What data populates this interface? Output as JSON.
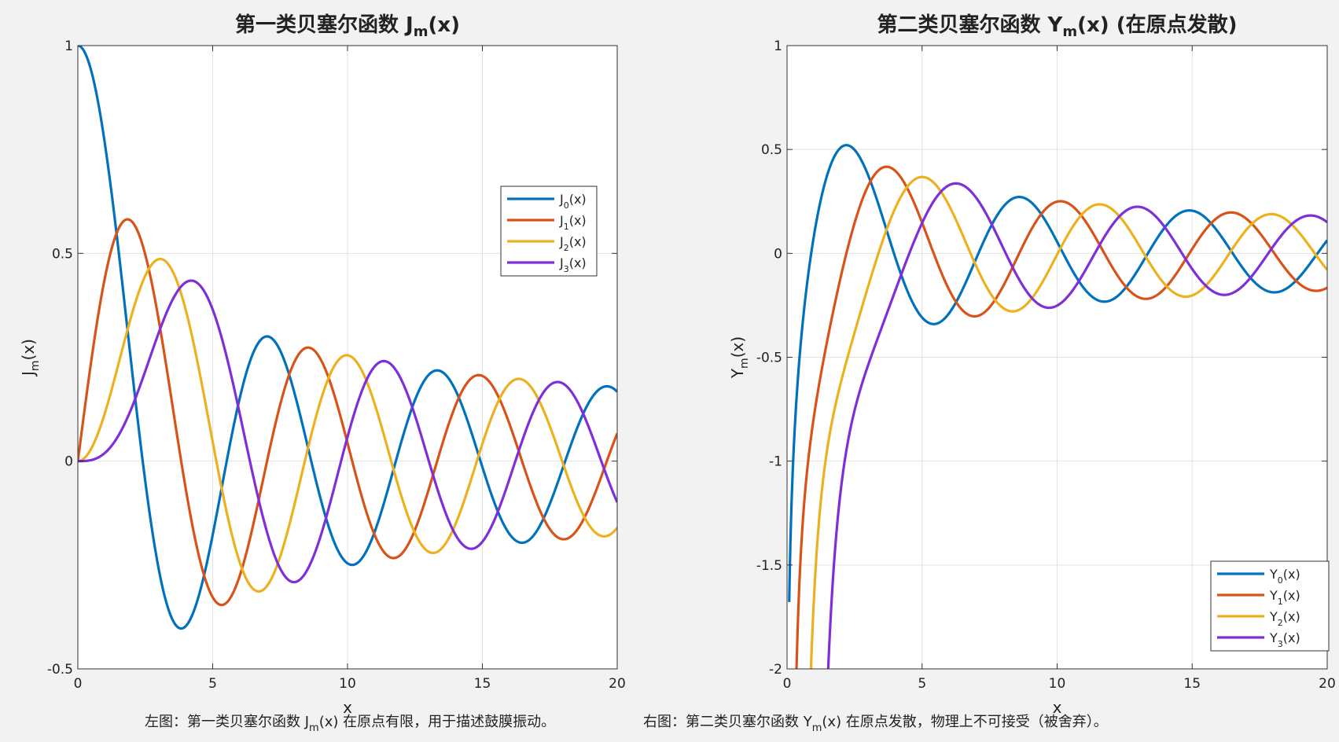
{
  "colors": {
    "s0": "#0072BD",
    "s1": "#D95319",
    "s2": "#EDB120",
    "s3": "#7E2FD8"
  },
  "caption": {
    "left_a": "左图：第一类贝塞尔函数  J",
    "left_sub": "m",
    "left_b": "(x)  在原点有限，用于描述鼓膜振动。",
    "right_a": "右图：第二类贝塞尔函数  Y",
    "right_sub": "m",
    "right_b": "(x)  在原点发散，物理上不可接受（被舍弃）。"
  },
  "chart_data": [
    {
      "type": "line",
      "title": "第一类贝塞尔函数  J",
      "title_sub": "m",
      "title_tail": "(x)",
      "xlabel": "x",
      "ylabel_main": "J",
      "ylabel_sub": "m",
      "ylabel_tail": "(x)",
      "xlim": [
        0,
        20
      ],
      "ylim": [
        -0.5,
        1
      ],
      "xticks": [
        0,
        5,
        10,
        15,
        20
      ],
      "xtick_labels": [
        "0",
        "5",
        "10",
        "15",
        "20"
      ],
      "yticks": [
        -0.5,
        0,
        0.5,
        1
      ],
      "ytick_labels": [
        "-0.5",
        "0",
        "0.5",
        "1"
      ],
      "grid": true,
      "legend_position": "upper-right",
      "series": [
        {
          "name_main": "J",
          "name_sub": "0",
          "name_tail": "(x)",
          "order": 0,
          "kind": "J",
          "color_key": "s0"
        },
        {
          "name_main": "J",
          "name_sub": "1",
          "name_tail": "(x)",
          "order": 1,
          "kind": "J",
          "color_key": "s1"
        },
        {
          "name_main": "J",
          "name_sub": "2",
          "name_tail": "(x)",
          "order": 2,
          "kind": "J",
          "color_key": "s2"
        },
        {
          "name_main": "J",
          "name_sub": "3",
          "name_tail": "(x)",
          "order": 3,
          "kind": "J",
          "color_key": "s3"
        }
      ]
    },
    {
      "type": "line",
      "title": "第二类贝塞尔函数  Y",
      "title_sub": "m",
      "title_tail": "(x)  (在原点发散)",
      "xlabel": "x",
      "ylabel_main": "Y",
      "ylabel_sub": "m",
      "ylabel_tail": "(x)",
      "xlim": [
        0,
        20
      ],
      "ylim": [
        -2,
        1
      ],
      "xticks": [
        0,
        5,
        10,
        15,
        20
      ],
      "xtick_labels": [
        "0",
        "5",
        "10",
        "15",
        "20"
      ],
      "yticks": [
        -2,
        -1.5,
        -1,
        -0.5,
        0,
        0.5,
        1
      ],
      "ytick_labels": [
        "-2",
        "-1.5",
        "-1",
        "-0.5",
        "0",
        "0.5",
        "1"
      ],
      "grid": true,
      "legend_position": "lower-right",
      "series": [
        {
          "name_main": "Y",
          "name_sub": "0",
          "name_tail": "(x)",
          "order": 0,
          "kind": "Y",
          "color_key": "s0"
        },
        {
          "name_main": "Y",
          "name_sub": "1",
          "name_tail": "(x)",
          "order": 1,
          "kind": "Y",
          "color_key": "s1"
        },
        {
          "name_main": "Y",
          "name_sub": "2",
          "name_tail": "(x)",
          "order": 2,
          "kind": "Y",
          "color_key": "s2"
        },
        {
          "name_main": "Y",
          "name_sub": "3",
          "name_tail": "(x)",
          "order": 3,
          "kind": "Y",
          "color_key": "s3"
        }
      ]
    }
  ]
}
